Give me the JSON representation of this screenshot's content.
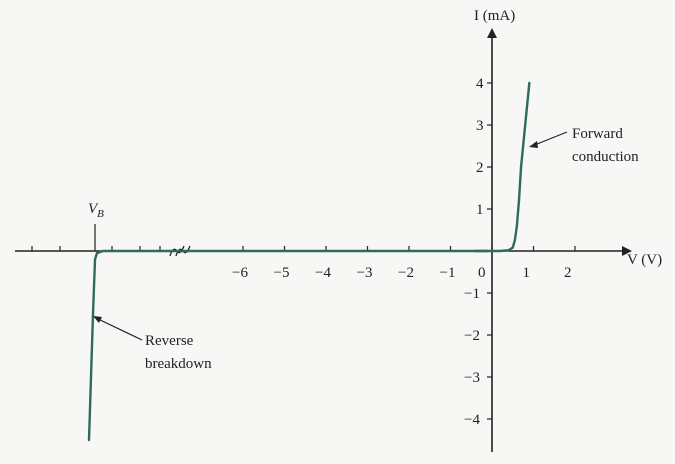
{
  "chart_data": {
    "type": "line",
    "title": "",
    "xlabel": "V (V)",
    "ylabel": "I (mA)",
    "xlim": [
      -7,
      3
    ],
    "ylim": [
      -4.5,
      5
    ],
    "x_ticks": [
      -6,
      -5,
      -4,
      -3,
      -2,
      -1,
      0,
      1,
      2
    ],
    "x_tick_labels": [
      "−6",
      "−5",
      "−4",
      "−3",
      "−2",
      "−1",
      "0",
      "1",
      "2"
    ],
    "y_ticks": [
      4,
      3,
      2,
      1,
      -1,
      -2,
      -3,
      -4
    ],
    "y_tick_labels": [
      "4",
      "3",
      "2",
      "1",
      "−1",
      "−2",
      "−3",
      "−4"
    ],
    "breakdown_label": "VB",
    "breakdown_label_main": "V",
    "breakdown_label_sub": "B",
    "axis_break": true,
    "grid": false,
    "series": [
      {
        "color": "#2f6b5a",
        "forward": {
          "x": [
            0,
            0.2,
            0.4,
            0.5,
            0.55,
            0.6,
            0.65,
            0.7,
            0.8,
            0.9
          ],
          "y": [
            0,
            0.0,
            0.02,
            0.08,
            0.25,
            0.6,
            1.2,
            2.0,
            3.0,
            4.0
          ]
        },
        "reverse_breakdown": {
          "x": [
            -0.1,
            -0.6,
            -0.75,
            -0.8,
            -0.85,
            -0.95
          ],
          "y": [
            0,
            0,
            -0.05,
            -0.2,
            -1.5,
            -4.5
          ]
        },
        "note": ""
      }
    ],
    "annotations": [
      {
        "lines": [
          "Forward",
          "conduction"
        ]
      },
      {
        "lines": [
          "Reverse",
          "breakdown"
        ]
      }
    ]
  }
}
